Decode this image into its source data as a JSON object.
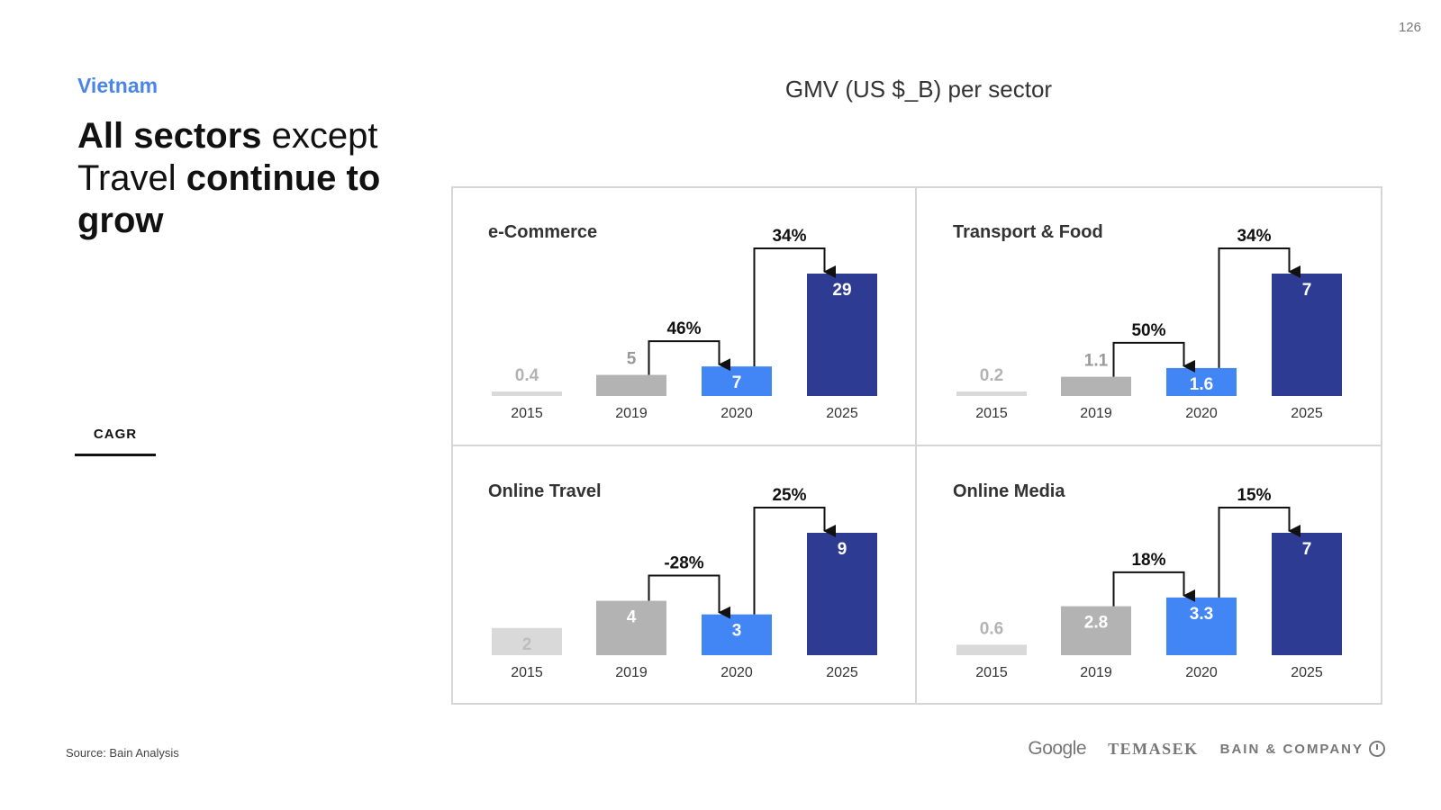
{
  "page_number": "126",
  "country": "Vietnam",
  "headline": {
    "part1": "All sectors",
    "part2": " except Travel ",
    "part3": "continue to grow"
  },
  "legend_label": "CAGR",
  "main_title": "GMV (US $_B) per sector",
  "source": "Source: Bain Analysis",
  "logos": {
    "google": "Google",
    "temasek": "TEMASEK",
    "bain": "BAIN & COMPANY"
  },
  "colors": {
    "2015": "#d9d9d9",
    "2019": "#b3b3b3",
    "2020": "#4285f4",
    "2025": "#2e3b93",
    "panel_border": "#d6d6d6"
  },
  "chart_data": [
    {
      "type": "bar",
      "title": "e-Commerce",
      "categories": [
        "2015",
        "2019",
        "2020",
        "2025"
      ],
      "values": [
        0.4,
        5,
        7,
        29
      ],
      "labels": [
        "0.4",
        "5",
        "7",
        "29"
      ],
      "cagr": [
        {
          "from": "2019",
          "to": "2020",
          "label": "46%"
        },
        {
          "from": "2020",
          "to": "2025",
          "label": "34%"
        }
      ],
      "ylim": [
        0,
        29
      ]
    },
    {
      "type": "bar",
      "title": "Transport & Food",
      "categories": [
        "2015",
        "2019",
        "2020",
        "2025"
      ],
      "values": [
        0.2,
        1.1,
        1.6,
        7
      ],
      "labels": [
        "0.2",
        "1.1",
        "1.6",
        "7"
      ],
      "cagr": [
        {
          "from": "2019",
          "to": "2020",
          "label": "50%"
        },
        {
          "from": "2020",
          "to": "2025",
          "label": "34%"
        }
      ],
      "ylim": [
        0,
        7
      ]
    },
    {
      "type": "bar",
      "title": "Online Travel",
      "categories": [
        "2015",
        "2019",
        "2020",
        "2025"
      ],
      "values": [
        2,
        4,
        3,
        9
      ],
      "labels": [
        "2",
        "4",
        "3",
        "9"
      ],
      "cagr": [
        {
          "from": "2019",
          "to": "2020",
          "label": "-28%"
        },
        {
          "from": "2020",
          "to": "2025",
          "label": "25%"
        }
      ],
      "ylim": [
        0,
        9
      ]
    },
    {
      "type": "bar",
      "title": "Online Media",
      "categories": [
        "2015",
        "2019",
        "2020",
        "2025"
      ],
      "values": [
        0.6,
        2.8,
        3.3,
        7
      ],
      "labels": [
        "0.6",
        "2.8",
        "3.3",
        "7"
      ],
      "cagr": [
        {
          "from": "2019",
          "to": "2020",
          "label": "18%"
        },
        {
          "from": "2020",
          "to": "2025",
          "label": "15%"
        }
      ],
      "ylim": [
        0,
        7
      ]
    }
  ]
}
